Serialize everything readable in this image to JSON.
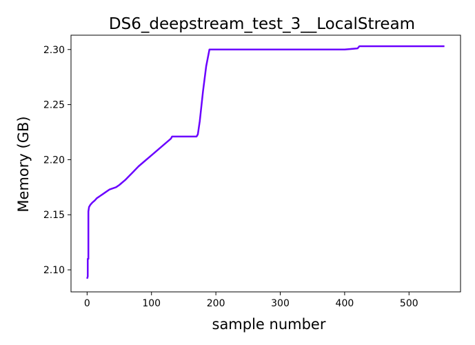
{
  "chart_data": {
    "type": "line",
    "title": "DS6_deepstream_test_3__LocalStream",
    "xlabel": "sample number",
    "ylabel": "Memory (GB)",
    "xlim": [
      -25,
      580
    ],
    "ylim": [
      2.08,
      2.313
    ],
    "x_ticks": [
      0,
      100,
      200,
      300,
      400,
      500
    ],
    "y_ticks": [
      2.1,
      2.15,
      2.2,
      2.25,
      2.3
    ],
    "x_tick_labels": [
      "0",
      "100",
      "200",
      "300",
      "400",
      "500"
    ],
    "y_tick_labels": [
      "2.10",
      "2.15",
      "2.20",
      "2.25",
      "2.30"
    ],
    "grid": false,
    "line_color": "#6a00ff",
    "series": [
      {
        "x": [
          0,
          1,
          1,
          2,
          2,
          3,
          5,
          8,
          12,
          15,
          20,
          25,
          30,
          35,
          40,
          45,
          50,
          60,
          70,
          80,
          90,
          100,
          110,
          120,
          130,
          132,
          140,
          150,
          160,
          170,
          172,
          175,
          180,
          185,
          190,
          192,
          200,
          250,
          300,
          350,
          400,
          420,
          423,
          425,
          450,
          500,
          550,
          555
        ],
        "y": [
          2.092,
          2.094,
          2.11,
          2.11,
          2.153,
          2.157,
          2.159,
          2.161,
          2.163,
          2.165,
          2.167,
          2.169,
          2.171,
          2.173,
          2.174,
          2.175,
          2.177,
          2.182,
          2.188,
          2.194,
          2.199,
          2.204,
          2.209,
          2.214,
          2.219,
          2.221,
          2.221,
          2.221,
          2.221,
          2.221,
          2.223,
          2.235,
          2.262,
          2.285,
          2.3,
          2.3,
          2.3,
          2.3,
          2.3,
          2.3,
          2.3,
          2.301,
          2.303,
          2.303,
          2.303,
          2.303,
          2.303,
          2.303
        ]
      }
    ]
  }
}
